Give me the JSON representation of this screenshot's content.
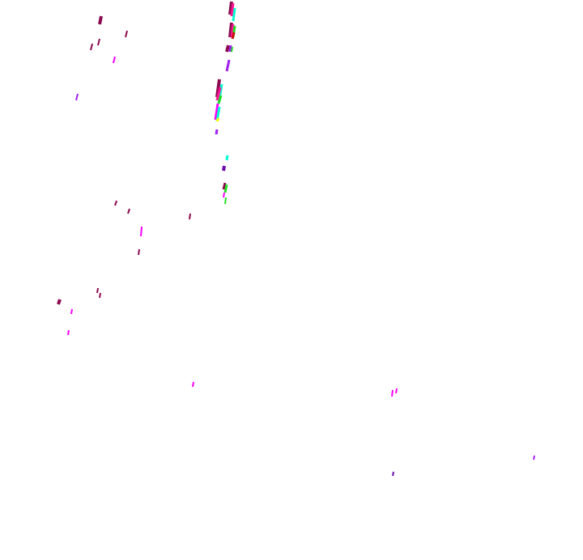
{
  "background": "#ffffff",
  "palette": {
    "maroon": "#8b0a50",
    "magenta": "#ff00ff",
    "pink": "#ff1493",
    "purple": "#a020f0",
    "violet": "#6a0dad",
    "blue": "#1e1eff",
    "cyan": "#00ffd0",
    "skyblue": "#1e90ff",
    "green": "#22dd22",
    "yellow": "#ffff00",
    "red": "#d01010"
  }
}
